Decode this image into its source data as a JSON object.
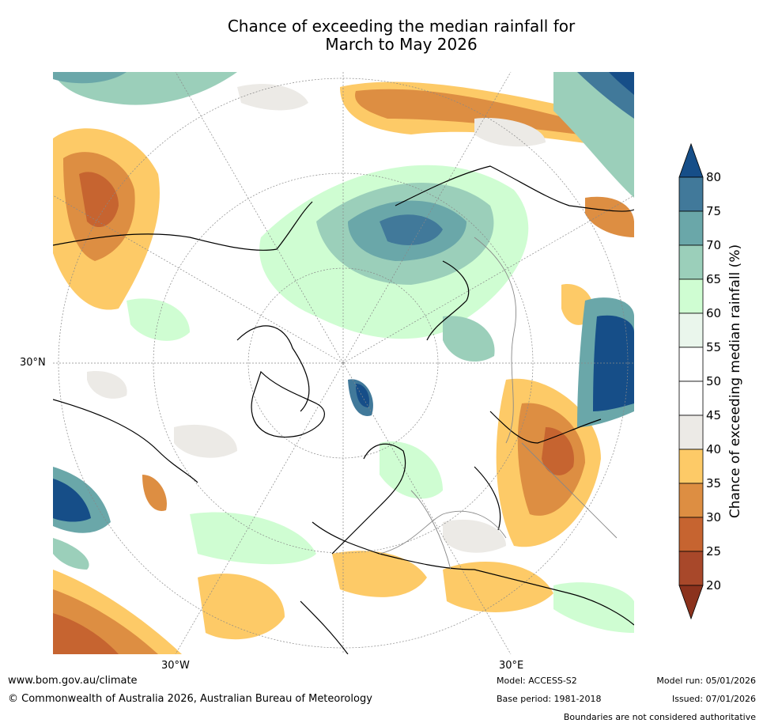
{
  "title_line1": "Chance of exceeding the median rainfall for",
  "title_line2": "March to May 2026",
  "axis_labels": {
    "lat_left": "30°N",
    "lon_bottom_left": "30°W",
    "lon_bottom_right": "30°E"
  },
  "colorbar": {
    "label": "Chance of exceeding median rainfall (%)",
    "ticks": [
      "80",
      "75",
      "70",
      "65",
      "60",
      "55",
      "50",
      "45",
      "40",
      "35",
      "30",
      "25",
      "20"
    ],
    "levels": [
      {
        "range": ">80",
        "color": "#164e88"
      },
      {
        "range": "75-80",
        "color": "#41799a"
      },
      {
        "range": "70-75",
        "color": "#6aa7a9"
      },
      {
        "range": "65-70",
        "color": "#9bcfba"
      },
      {
        "range": "60-65",
        "color": "#cffdd2"
      },
      {
        "range": "55-60",
        "color": "#eaf6ec"
      },
      {
        "range": "50-55",
        "color": "#ffffff"
      },
      {
        "range": "45-50",
        "color": "#ffffff"
      },
      {
        "range": "40-45",
        "color": "#eceae6"
      },
      {
        "range": "35-40",
        "color": "#fdca67"
      },
      {
        "range": "30-35",
        "color": "#dd8e42"
      },
      {
        "range": "25-30",
        "color": "#c66430"
      },
      {
        "range": "20-25",
        "color": "#a8482a"
      },
      {
        "range": "<20",
        "color": "#8b321d"
      }
    ]
  },
  "footer": {
    "website": "www.bom.gov.au/climate",
    "copyright": "© Commonwealth of Australia 2026, Australian Bureau of Meteorology",
    "model": "Model: ACCESS-S2",
    "base_period": "Base period: 1981-2018",
    "model_run": "Model run: 05/01/2026",
    "issued": "Issued: 07/01/2026",
    "disclaimer": "Boundaries are not considered authoritative"
  }
}
